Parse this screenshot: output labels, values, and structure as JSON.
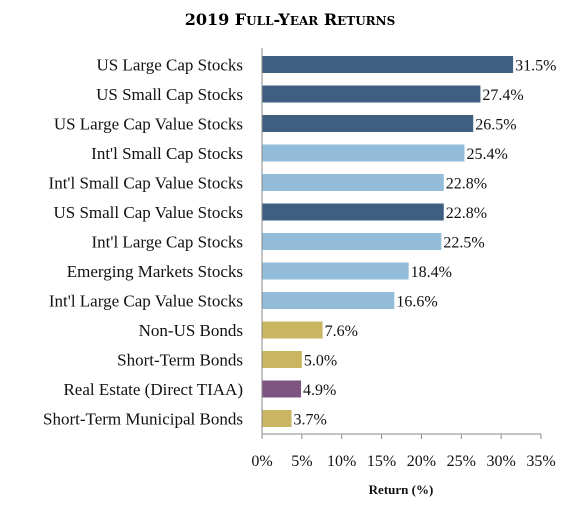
{
  "chart_data": {
    "type": "bar",
    "orientation": "horizontal",
    "title": "2019 Full-Year Returns",
    "xlabel": "Return (%)",
    "ylabel": "",
    "xlim": [
      0,
      35
    ],
    "x_ticks": [
      "0%",
      "5%",
      "10%",
      "15%",
      "20%",
      "25%",
      "30%",
      "35%"
    ],
    "grid": false,
    "legend": "none",
    "categories": [
      "US Large Cap Stocks",
      "US Small Cap Stocks",
      "US Large Cap Value Stocks",
      "Int'l Small Cap Stocks",
      "Int'l Small Cap Value Stocks",
      "US Small Cap Value Stocks",
      "Int'l Large Cap Stocks",
      "Emerging Markets Stocks",
      "Int'l Large Cap Value Stocks",
      "Non-US Bonds",
      "Short-Term Bonds",
      "Real Estate (Direct TIAA)",
      "Short-Term Municipal Bonds"
    ],
    "values": [
      31.5,
      27.4,
      26.5,
      25.4,
      22.8,
      22.8,
      22.5,
      18.4,
      16.6,
      7.6,
      5.0,
      4.9,
      3.7
    ],
    "value_labels": [
      "31.5%",
      "27.4%",
      "26.5%",
      "25.4%",
      "22.8%",
      "22.8%",
      "22.5%",
      "18.4%",
      "16.6%",
      "7.6%",
      "5.0%",
      "4.9%",
      "3.7%"
    ],
    "bar_colors": [
      "#3f5f80",
      "#3f5f80",
      "#3f5f80",
      "#93bcd9",
      "#93bcd9",
      "#3f5f80",
      "#93bcd9",
      "#93bcd9",
      "#93bcd9",
      "#c9b562",
      "#c9b562",
      "#7d5580",
      "#c9b562"
    ]
  },
  "title_parts": {
    "prefix": "2019 F",
    "small1": "ULL",
    "mid": "-Y",
    "small2": "EAR",
    "mid2": " R",
    "small3": "ETURNS"
  }
}
